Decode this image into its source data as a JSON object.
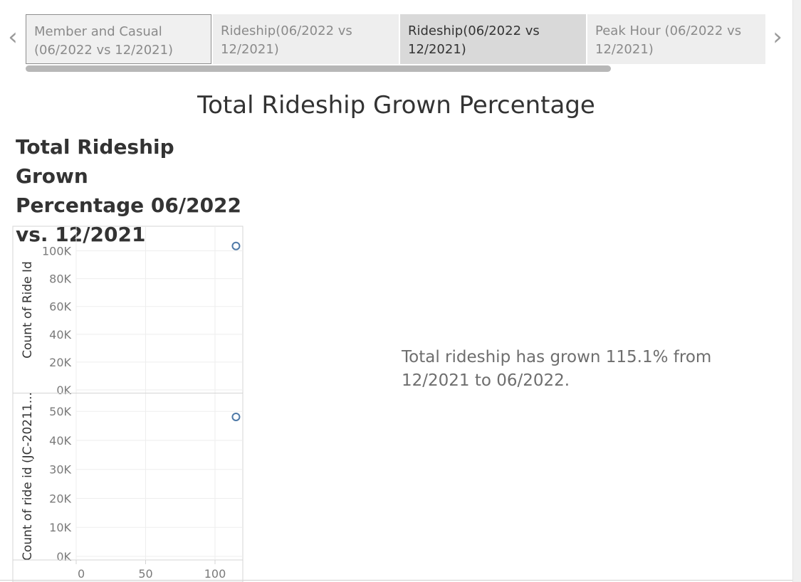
{
  "tabs": [
    {
      "label": "Member and Casual (06/2022 vs 12/2021)",
      "lines": [
        "Member and Casual",
        "(06/2022 vs 12/2021)"
      ]
    },
    {
      "label": "Rideship(06/2022 vs 12/2021)",
      "lines": [
        "Rideship(06/2022 vs",
        "12/2021)"
      ]
    },
    {
      "label": "Rideship(06/2022 vs 12/2021)",
      "lines": [
        "Rideship(06/2022 vs",
        "12/2021)"
      ]
    },
    {
      "label": "Peak Hour (06/2022 vs 12/2021)",
      "lines": [
        "Peak Hour (06/2022 vs",
        "12/2021)"
      ]
    }
  ],
  "nav": {
    "prev_icon": "chevron-left-icon",
    "next_icon": "chevron-right-icon"
  },
  "page_title": "Total Rideship Grown Percentage",
  "insight_text": "Total rideship has grown 115.1% from 12/2021 to 06/2022.",
  "colors": {
    "point_stroke": "#4e79a7",
    "grid": "#eeeeee",
    "axis_text": "#7a7a7a"
  },
  "chart_data": {
    "type": "scatter",
    "title": "Total Rideship Grown Percentage 06/2022 vs. 12/2021",
    "title_lines": [
      "Total Rideship Grown",
      "Percentage 06/2022",
      "vs. 12/2021"
    ],
    "x": {
      "label": "",
      "range": [
        0,
        120
      ],
      "ticks": [
        0,
        50,
        100
      ],
      "tick_labels": [
        "0",
        "50",
        "100"
      ]
    },
    "panels": [
      {
        "ylabel": "Count of Ride Id",
        "ylim": [
          0,
          110000
        ],
        "y_ticks": [
          0,
          20000,
          40000,
          60000,
          80000,
          100000
        ],
        "y_tick_labels": [
          "0K",
          "20K",
          "40K",
          "60K",
          "80K",
          "100K"
        ],
        "points": [
          {
            "x": 115.1,
            "y": 103500
          }
        ]
      },
      {
        "ylabel": "Count of ride id (JC-20211...",
        "ylim": [
          0,
          53000
        ],
        "y_ticks": [
          0,
          10000,
          20000,
          30000,
          40000,
          50000
        ],
        "y_tick_labels": [
          "0K",
          "10K",
          "20K",
          "30K",
          "40K",
          "50K"
        ],
        "points": [
          {
            "x": 115.1,
            "y": 48100
          }
        ]
      }
    ],
    "grid": true,
    "legend": "none"
  }
}
